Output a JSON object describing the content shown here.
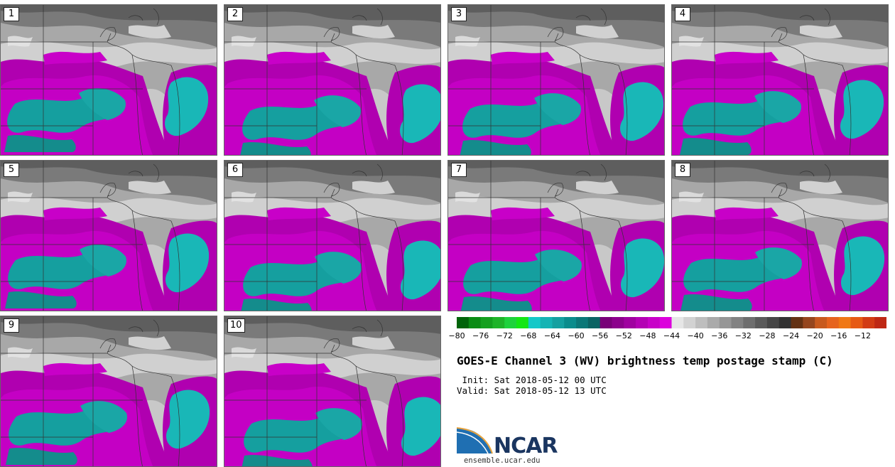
{
  "panels": [
    {
      "label": "1"
    },
    {
      "label": "2"
    },
    {
      "label": "3"
    },
    {
      "label": "4"
    },
    {
      "label": "5"
    },
    {
      "label": "6"
    },
    {
      "label": "7"
    },
    {
      "label": "8"
    },
    {
      "label": "9"
    },
    {
      "label": "10"
    }
  ],
  "colorbar": {
    "colors": [
      "#00640a",
      "#0a8c14",
      "#14a01e",
      "#1eb428",
      "#1ed23c",
      "#14e614",
      "#14c8c8",
      "#14b4b4",
      "#14a0a0",
      "#0a8c8c",
      "#0a7878",
      "#0a6464",
      "#780078",
      "#8c008c",
      "#a000a0",
      "#b400b4",
      "#c800c8",
      "#dc00dc",
      "#e6e6e6",
      "#d2d2d2",
      "#bebebe",
      "#aaaaaa",
      "#969696",
      "#828282",
      "#6e6e6e",
      "#5a5a5a",
      "#464646",
      "#323232",
      "#643214",
      "#96461e",
      "#c85a1e",
      "#e6641e",
      "#f07814",
      "#e65a14",
      "#d23c14",
      "#be2814"
    ],
    "tick_labels": [
      "−80",
      "−76",
      "−72",
      "−68",
      "−64",
      "−60",
      "−56",
      "−52",
      "−48",
      "−44",
      "−40",
      "−36",
      "−32",
      "−28",
      "−24",
      "−20",
      "−16",
      "−12"
    ]
  },
  "title": "GOES-E Channel 3 (WV) brightness temp postage stamp (C)",
  "init_line": " Init: Sat 2018-05-12 00 UTC",
  "valid_line": "Valid: Sat 2018-05-12 13 UTC",
  "logo_text": "NCAR",
  "logo_url": "ensemble.ucar.edu"
}
